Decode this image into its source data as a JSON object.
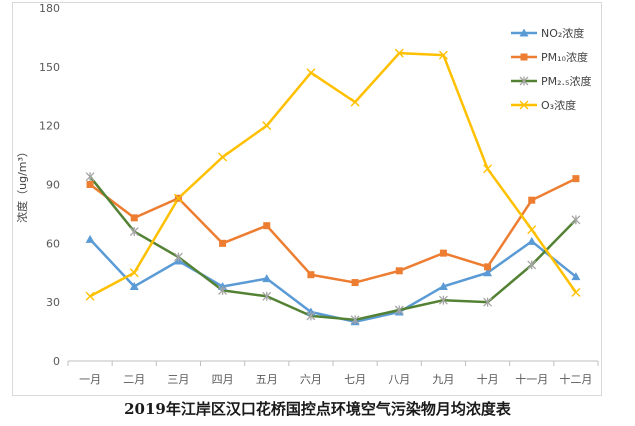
{
  "chart_data": {
    "type": "line",
    "ylabel": "浓度（ug/m³）",
    "ylim": [
      0,
      180
    ],
    "yticks": [
      0,
      30,
      60,
      90,
      120,
      150,
      180
    ],
    "categories": [
      "一月",
      "二月",
      "三月",
      "四月",
      "五月",
      "六月",
      "七月",
      "八月",
      "九月",
      "十月",
      "十一月",
      "十二月"
    ],
    "grid": false,
    "legend_position": "top-right",
    "series": [
      {
        "name": "NO₂浓度",
        "color": "#5b9bd5",
        "marker": "triangle",
        "values": [
          62,
          38,
          51,
          38,
          42,
          25,
          20,
          25,
          38,
          45,
          61,
          43
        ]
      },
      {
        "name": "PM₁₀浓度",
        "color": "#ed7d31",
        "marker": "square",
        "values": [
          90,
          73,
          83,
          60,
          69,
          44,
          40,
          46,
          55,
          48,
          82,
          93
        ]
      },
      {
        "name": "PM₂.₅浓度",
        "color": "#548235",
        "marker": "star",
        "values": [
          94,
          66,
          53,
          36,
          33,
          23,
          21,
          26,
          31,
          30,
          49,
          72
        ]
      },
      {
        "name": "O₃浓度",
        "color": "#ffc000",
        "marker": "x",
        "values": [
          33,
          45,
          83,
          104,
          120,
          147,
          132,
          157,
          156,
          98,
          67,
          35
        ]
      }
    ]
  },
  "caption": "2019年江岸区汉口花桥国控点环境空气污染物月均浓度表"
}
